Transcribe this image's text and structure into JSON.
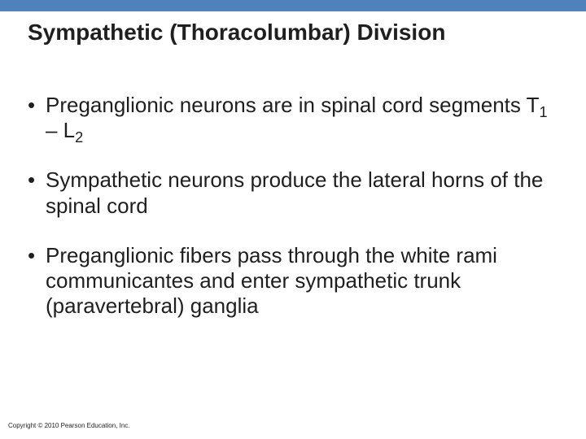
{
  "colors": {
    "top_bar": "#4f81bd",
    "background": "#ffffff",
    "text": "#1f1f1f"
  },
  "title": "Sympathetic (Thoracolumbar) Division",
  "bullets": [
    {
      "pre": "Preganglionic neurons are in spinal cord segments T",
      "sub1": "1",
      "mid": " – L",
      "sub2": "2",
      "post": ""
    },
    {
      "text": "Sympathetic neurons produce the lateral horns of the spinal cord"
    },
    {
      "text": "Preganglionic fibers pass through the white rami communicantes and enter sympathetic trunk (paravertebral) ganglia"
    }
  ],
  "copyright": "Copyright © 2010 Pearson Education, Inc."
}
